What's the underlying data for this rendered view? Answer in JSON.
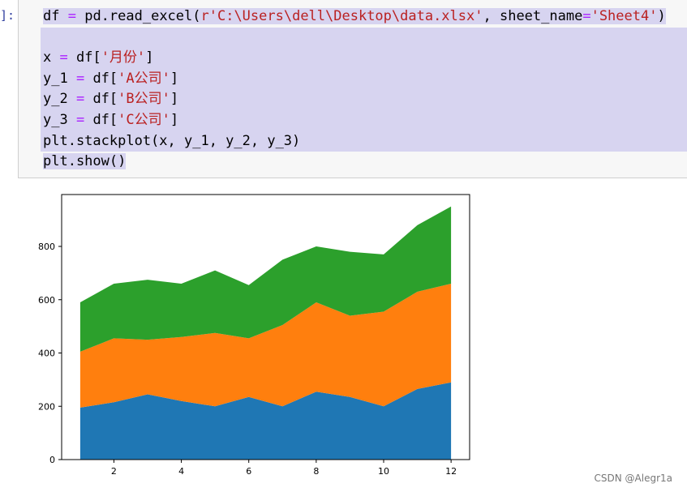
{
  "notebook": {
    "prompt": "]:",
    "code_lines": [
      {
        "parts": [
          [
            "plain",
            "df "
          ],
          [
            "op",
            "="
          ],
          [
            "plain",
            " pd.read_excel("
          ],
          [
            "str",
            "r'C:\\Users\\dell\\Desktop\\data.xlsx'"
          ],
          [
            "plain",
            ", sheet_name"
          ],
          [
            "op",
            "="
          ],
          [
            "str",
            "'Sheet4'"
          ],
          [
            "plain",
            ")"
          ]
        ],
        "full": false
      },
      {
        "parts": [],
        "full": true
      },
      {
        "parts": [
          [
            "plain",
            "x "
          ],
          [
            "op",
            "="
          ],
          [
            "plain",
            " df["
          ],
          [
            "str",
            "'月份'"
          ],
          [
            "plain",
            "]"
          ]
        ],
        "full": true
      },
      {
        "parts": [
          [
            "plain",
            "y_1 "
          ],
          [
            "op",
            "="
          ],
          [
            "plain",
            " df["
          ],
          [
            "str",
            "'A公司'"
          ],
          [
            "plain",
            "]"
          ]
        ],
        "full": true
      },
      {
        "parts": [
          [
            "plain",
            "y_2 "
          ],
          [
            "op",
            "="
          ],
          [
            "plain",
            " df["
          ],
          [
            "str",
            "'B公司'"
          ],
          [
            "plain",
            "]"
          ]
        ],
        "full": true
      },
      {
        "parts": [
          [
            "plain",
            "y_3 "
          ],
          [
            "op",
            "="
          ],
          [
            "plain",
            " df["
          ],
          [
            "str",
            "'C公司'"
          ],
          [
            "plain",
            "]"
          ]
        ],
        "full": true
      },
      {
        "parts": [
          [
            "plain",
            "plt.stackplot(x, y_1, y_2, y_3)"
          ]
        ],
        "full": true
      },
      {
        "parts": [
          [
            "plain",
            "plt.show()"
          ]
        ],
        "full": false
      }
    ]
  },
  "watermark": "CSDN @Alegr1a",
  "chart_data": {
    "type": "area",
    "title": "",
    "xlabel": "",
    "ylabel": "",
    "x": [
      1,
      2,
      3,
      4,
      5,
      6,
      7,
      8,
      9,
      10,
      11,
      12
    ],
    "xticks": [
      2,
      4,
      6,
      8,
      10,
      12
    ],
    "yticks": [
      0,
      200,
      400,
      600,
      800
    ],
    "xlim": [
      0.45,
      12.55
    ],
    "ylim": [
      0,
      1000
    ],
    "stacked": true,
    "series": [
      {
        "color": "#1f77b4",
        "values": [
          195,
          215,
          245,
          220,
          200,
          235,
          200,
          255,
          235,
          200,
          265,
          290
        ]
      },
      {
        "color": "#ff7f0e",
        "values": [
          210,
          240,
          205,
          240,
          275,
          220,
          305,
          335,
          305,
          355,
          365,
          370
        ]
      },
      {
        "color": "#2ca02c",
        "values": [
          185,
          205,
          225,
          200,
          235,
          200,
          245,
          210,
          240,
          215,
          250,
          290
        ]
      }
    ]
  }
}
